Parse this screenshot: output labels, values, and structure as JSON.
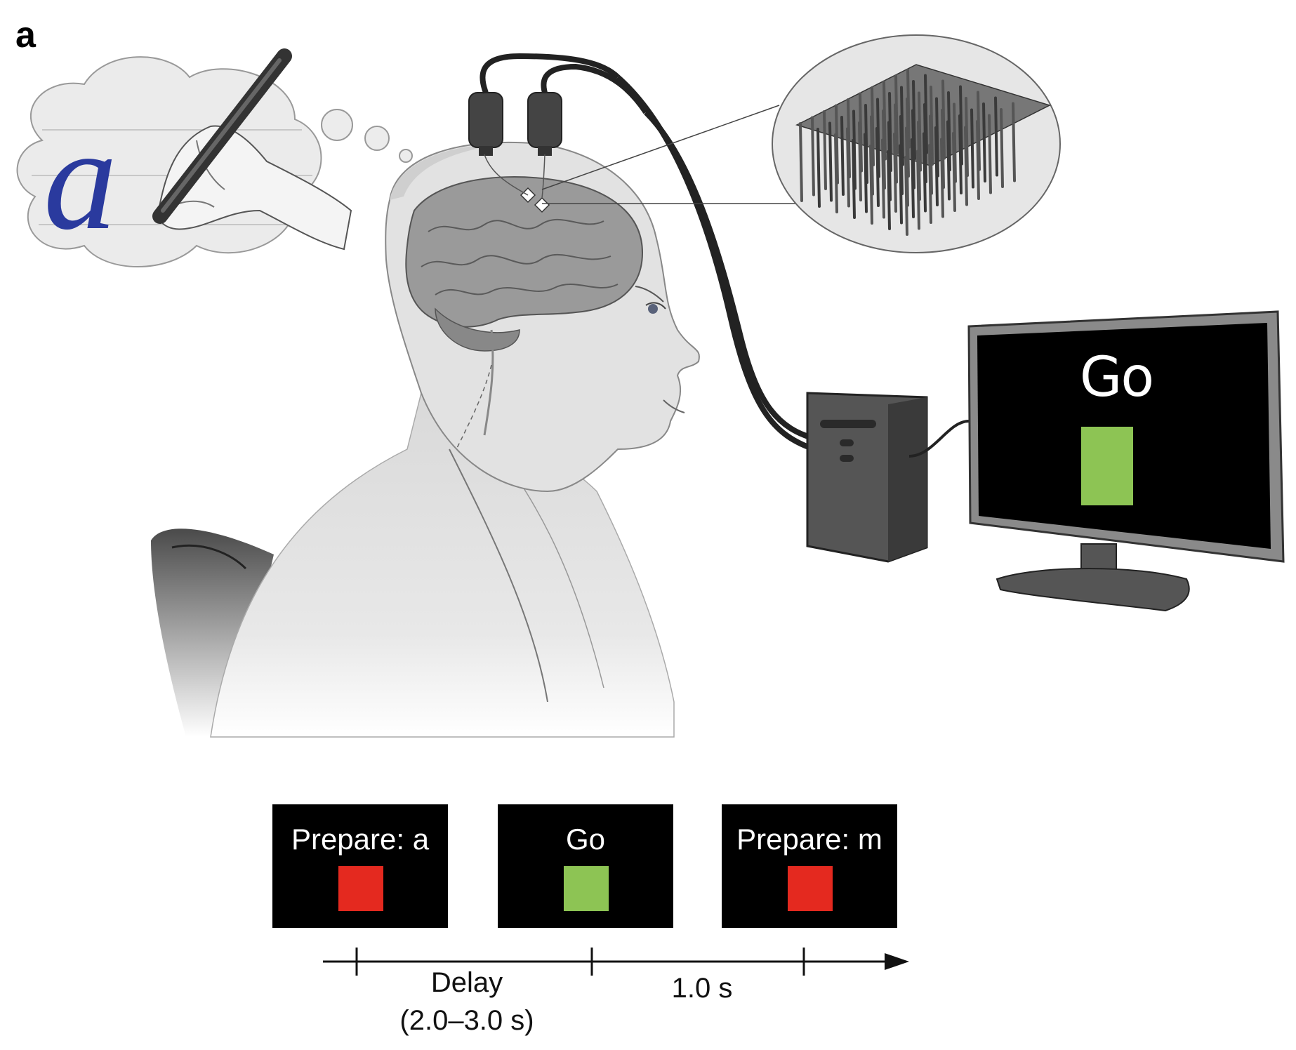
{
  "panel_label": "a",
  "thought": {
    "letter": "a"
  },
  "monitor": {
    "text": "Go",
    "square_color": "#8dc454"
  },
  "colors": {
    "prepare": "#e4291f",
    "go": "#8dc454"
  },
  "screens": [
    {
      "label": "Prepare: a",
      "square_color": "#e4291f"
    },
    {
      "label": "Go",
      "square_color": "#8dc454"
    },
    {
      "label": "Prepare: m",
      "square_color": "#e4291f"
    }
  ],
  "timeline": {
    "delay_label": "Delay",
    "delay_range": "(2.0–3.0 s)",
    "go_duration": "1.0 s"
  }
}
